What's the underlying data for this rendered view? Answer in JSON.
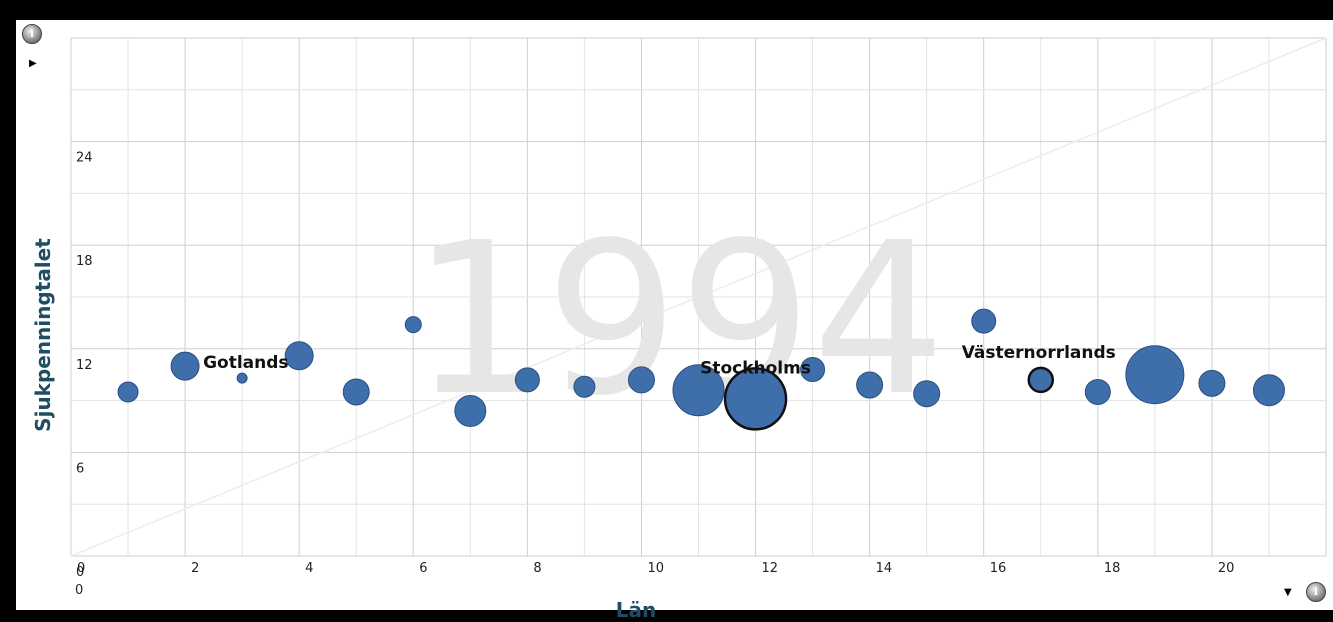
{
  "chart_data": {
    "type": "scatter",
    "subtype": "bubble",
    "watermark": "1994",
    "xlabel": "Län",
    "ylabel": "Sjukpenningtalet",
    "xlim": [
      0,
      22
    ],
    "ylim": [
      0,
      30
    ],
    "x_ticks": [
      "0",
      "2",
      "4",
      "6",
      "8",
      "10",
      "12",
      "14",
      "16",
      "18",
      "20"
    ],
    "y_ticks": [
      "0",
      "6",
      "12",
      "18",
      "24"
    ],
    "x_origin_label": "0",
    "grid": true,
    "colors": {
      "bubble": "#3f6fab",
      "bubble_border": "#2a4f80",
      "highlight_border": "#111111",
      "axis_title": "#1f4e62",
      "watermark": "#e6e6e6"
    },
    "points": [
      {
        "x": 1,
        "y": 9.5,
        "size": 1.4
      },
      {
        "x": 2,
        "y": 11.0,
        "size": 2.2,
        "label": "Gotlands"
      },
      {
        "x": 3,
        "y": 10.3,
        "size": 0.4
      },
      {
        "x": 4,
        "y": 11.6,
        "size": 2.2
      },
      {
        "x": 5,
        "y": 9.5,
        "size": 2.0
      },
      {
        "x": 6,
        "y": 13.4,
        "size": 1.0
      },
      {
        "x": 7,
        "y": 8.4,
        "size": 2.5
      },
      {
        "x": 8,
        "y": 10.2,
        "size": 1.8
      },
      {
        "x": 9,
        "y": 9.8,
        "size": 1.5
      },
      {
        "x": 10,
        "y": 10.2,
        "size": 2.0
      },
      {
        "x": 11,
        "y": 9.6,
        "size": 4.5
      },
      {
        "x": 12,
        "y": 9.1,
        "size": 5.5,
        "label": "Stockholms",
        "highlight": true
      },
      {
        "x": 13,
        "y": 10.8,
        "size": 1.8
      },
      {
        "x": 14,
        "y": 9.9,
        "size": 2.0
      },
      {
        "x": 15,
        "y": 9.4,
        "size": 2.0
      },
      {
        "x": 16,
        "y": 13.6,
        "size": 1.8
      },
      {
        "x": 17,
        "y": 10.2,
        "size": 1.8,
        "label": "Västernorrlands",
        "highlight": true
      },
      {
        "x": 18,
        "y": 9.5,
        "size": 1.9
      },
      {
        "x": 19,
        "y": 10.5,
        "size": 5.2
      },
      {
        "x": 20,
        "y": 10.0,
        "size": 2.0
      },
      {
        "x": 21,
        "y": 9.6,
        "size": 2.5
      }
    ]
  },
  "controls": {
    "info_icon": "i",
    "play_arrow_icon": "▶",
    "dropdown_arrow_icon": "▼"
  }
}
